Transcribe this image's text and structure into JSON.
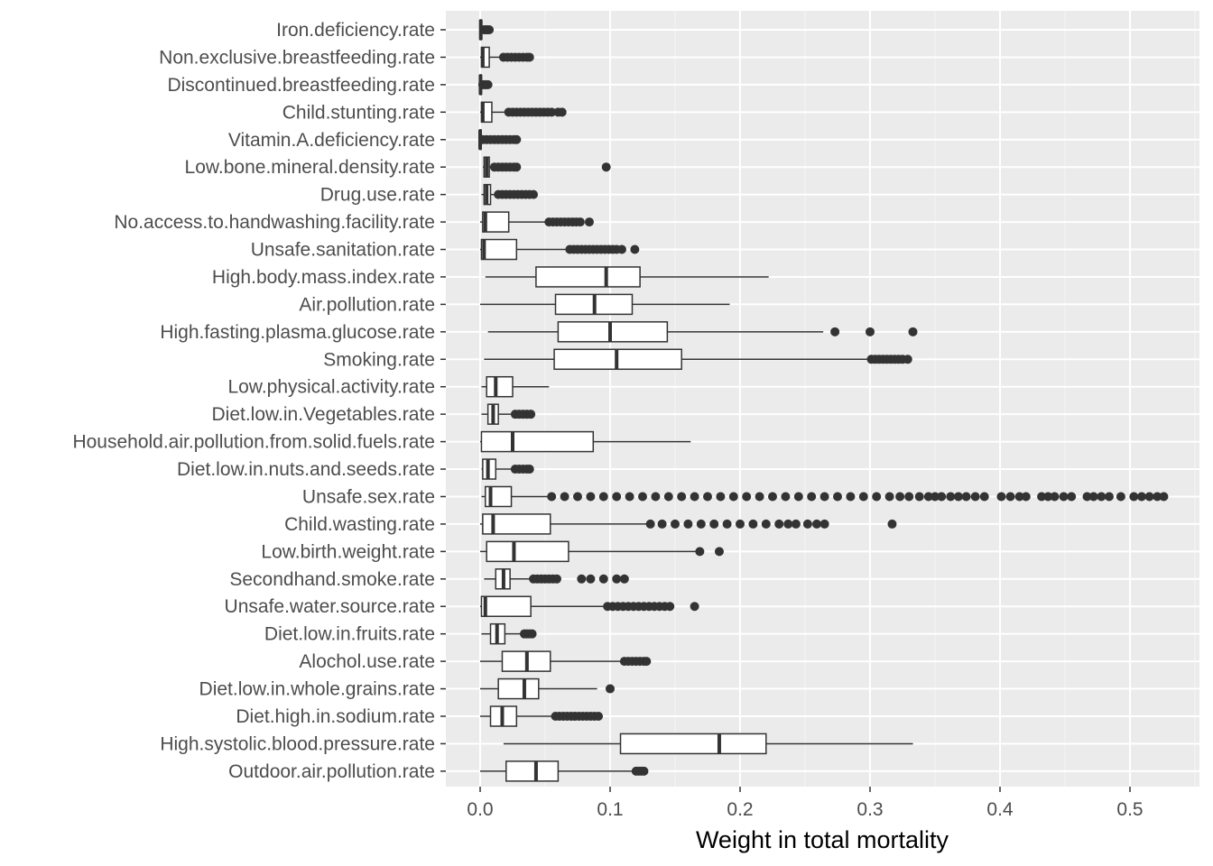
{
  "chart_data": {
    "type": "boxplot",
    "orientation": "horizontal",
    "xlabel": "Weight in total mortality",
    "ylabel": "",
    "xlim": [
      -0.025,
      0.55
    ],
    "xticks": [
      0.0,
      0.1,
      0.2,
      0.3,
      0.4,
      0.5
    ],
    "xtick_labels": [
      "0.0",
      "0.1",
      "0.2",
      "0.3",
      "0.4",
      "0.5"
    ],
    "grid": true,
    "colors": {
      "panel": "#ebebeb",
      "grid_major": "#ffffff",
      "grid_minor": "#f4f4f4",
      "box_fill": "#ffffff",
      "line": "#333333",
      "outlier": "#333333"
    },
    "categories": [
      {
        "label": "Iron.deficiency.rate",
        "min": 0.0,
        "q1": 0.0,
        "median": 0.0005,
        "q3": 0.001,
        "max": 0.002,
        "outliers": [
          0.003,
          0.004,
          0.005,
          0.006,
          0.007
        ]
      },
      {
        "label": "Non.exclusive.breastfeeding.rate",
        "min": 0.0,
        "q1": 0.001,
        "median": 0.002,
        "q3": 0.007,
        "max": 0.016,
        "outliers": [
          0.018,
          0.021,
          0.024,
          0.027,
          0.03,
          0.033,
          0.036,
          0.038
        ]
      },
      {
        "label": "Discontinued.breastfeeding.rate",
        "min": 0.0,
        "q1": 0.0,
        "median": 0.0003,
        "q3": 0.0008,
        "max": 0.0015,
        "outliers": [
          0.002,
          0.003,
          0.004,
          0.005,
          0.006
        ]
      },
      {
        "label": "Child.stunting.rate",
        "min": 0.0,
        "q1": 0.001,
        "median": 0.002,
        "q3": 0.009,
        "max": 0.02,
        "outliers": [
          0.022,
          0.025,
          0.028,
          0.031,
          0.034,
          0.037,
          0.04,
          0.043,
          0.046,
          0.049,
          0.052,
          0.055,
          0.06,
          0.063
        ]
      },
      {
        "label": "Vitamin.A.deficiency.rate",
        "min": 0.0,
        "q1": 0.0,
        "median": 0.0,
        "q3": 0.0005,
        "max": 0.001,
        "outliers": [
          0.002,
          0.005,
          0.008,
          0.011,
          0.014,
          0.017,
          0.02,
          0.023,
          0.026,
          0.028
        ]
      },
      {
        "label": "Low.bone.mineral.density.rate",
        "min": 0.002,
        "q1": 0.003,
        "median": 0.005,
        "q3": 0.007,
        "max": 0.01,
        "outliers": [
          0.011,
          0.014,
          0.017,
          0.02,
          0.023,
          0.026,
          0.028,
          0.097
        ]
      },
      {
        "label": "Drug.use.rate",
        "min": 0.001,
        "q1": 0.003,
        "median": 0.005,
        "q3": 0.008,
        "max": 0.012,
        "outliers": [
          0.014,
          0.017,
          0.02,
          0.023,
          0.026,
          0.029,
          0.032,
          0.035,
          0.038,
          0.041
        ]
      },
      {
        "label": "No.access.to.handwashing.facility.rate",
        "min": 0.0,
        "q1": 0.002,
        "median": 0.004,
        "q3": 0.022,
        "max": 0.051,
        "outliers": [
          0.053,
          0.056,
          0.059,
          0.062,
          0.065,
          0.068,
          0.071,
          0.074,
          0.077,
          0.084
        ]
      },
      {
        "label": "Unsafe.sanitation.rate",
        "min": 0.0,
        "q1": 0.001,
        "median": 0.003,
        "q3": 0.028,
        "max": 0.067,
        "outliers": [
          0.069,
          0.072,
          0.075,
          0.078,
          0.081,
          0.084,
          0.087,
          0.09,
          0.093,
          0.096,
          0.099,
          0.102,
          0.105,
          0.109,
          0.119
        ]
      },
      {
        "label": "High.body.mass.index.rate",
        "min": 0.004,
        "q1": 0.043,
        "median": 0.097,
        "q3": 0.123,
        "max": 0.222,
        "outliers": []
      },
      {
        "label": "Air.pollution.rate",
        "min": 0.0,
        "q1": 0.058,
        "median": 0.088,
        "q3": 0.117,
        "max": 0.192,
        "outliers": []
      },
      {
        "label": "High.fasting.plasma.glucose.rate",
        "min": 0.006,
        "q1": 0.06,
        "median": 0.1,
        "q3": 0.144,
        "max": 0.264,
        "outliers": [
          0.273,
          0.3,
          0.333
        ]
      },
      {
        "label": "Smoking.rate",
        "min": 0.003,
        "q1": 0.057,
        "median": 0.105,
        "q3": 0.155,
        "max": 0.3,
        "outliers": [
          0.301,
          0.304,
          0.307,
          0.31,
          0.313,
          0.316,
          0.319,
          0.322,
          0.325,
          0.329
        ]
      },
      {
        "label": "Low.physical.activity.rate",
        "min": 0.001,
        "q1": 0.005,
        "median": 0.012,
        "q3": 0.025,
        "max": 0.053,
        "outliers": []
      },
      {
        "label": "Diet.low.in.Vegetables.rate",
        "min": 0.001,
        "q1": 0.006,
        "median": 0.01,
        "q3": 0.014,
        "max": 0.025,
        "outliers": [
          0.027,
          0.03,
          0.033,
          0.036,
          0.039
        ]
      },
      {
        "label": "Household.air.pollution.from.solid.fuels.rate",
        "min": 0.0,
        "q1": 0.001,
        "median": 0.025,
        "q3": 0.087,
        "max": 0.162,
        "outliers": []
      },
      {
        "label": "Diet.low.in.nuts.and.seeds.rate",
        "min": 0.001,
        "q1": 0.002,
        "median": 0.006,
        "q3": 0.012,
        "max": 0.025,
        "outliers": [
          0.027,
          0.03,
          0.033,
          0.036,
          0.038
        ]
      },
      {
        "label": "Unsafe.sex.rate",
        "min": 0.001,
        "q1": 0.004,
        "median": 0.008,
        "q3": 0.024,
        "max": 0.052,
        "outliers": [
          0.055,
          0.065,
          0.075,
          0.085,
          0.095,
          0.105,
          0.115,
          0.125,
          0.135,
          0.145,
          0.155,
          0.165,
          0.175,
          0.185,
          0.195,
          0.205,
          0.215,
          0.225,
          0.235,
          0.245,
          0.255,
          0.265,
          0.275,
          0.285,
          0.295,
          0.305,
          0.315,
          0.323,
          0.33,
          0.338,
          0.345,
          0.35,
          0.355,
          0.362,
          0.368,
          0.374,
          0.381,
          0.388,
          0.401,
          0.408,
          0.415,
          0.42,
          0.432,
          0.437,
          0.442,
          0.449,
          0.455,
          0.467,
          0.472,
          0.478,
          0.484,
          0.493,
          0.503,
          0.509,
          0.515,
          0.521,
          0.526
        ]
      },
      {
        "label": "Child.wasting.rate",
        "min": 0.0,
        "q1": 0.002,
        "median": 0.01,
        "q3": 0.054,
        "max": 0.129,
        "outliers": [
          0.131,
          0.14,
          0.15,
          0.16,
          0.17,
          0.18,
          0.19,
          0.2,
          0.21,
          0.22,
          0.23,
          0.237,
          0.243,
          0.252,
          0.259,
          0.265,
          0.317
        ]
      },
      {
        "label": "Low.birth.weight.rate",
        "min": 0.0,
        "q1": 0.005,
        "median": 0.026,
        "q3": 0.068,
        "max": 0.167,
        "outliers": [
          0.169,
          0.184
        ]
      },
      {
        "label": "Secondhand.smoke.rate",
        "min": 0.003,
        "q1": 0.012,
        "median": 0.018,
        "q3": 0.023,
        "max": 0.039,
        "outliers": [
          0.041,
          0.044,
          0.047,
          0.05,
          0.053,
          0.056,
          0.059,
          0.078,
          0.085,
          0.095,
          0.105,
          0.111
        ]
      },
      {
        "label": "Unsafe.water.source.rate",
        "min": 0.0,
        "q1": 0.001,
        "median": 0.004,
        "q3": 0.039,
        "max": 0.096,
        "outliers": [
          0.098,
          0.102,
          0.106,
          0.11,
          0.114,
          0.118,
          0.122,
          0.126,
          0.13,
          0.134,
          0.138,
          0.142,
          0.146,
          0.165
        ]
      },
      {
        "label": "Diet.low.in.fruits.rate",
        "min": 0.001,
        "q1": 0.008,
        "median": 0.013,
        "q3": 0.019,
        "max": 0.032,
        "outliers": [
          0.034,
          0.036,
          0.038,
          0.04
        ]
      },
      {
        "label": "Alochol.use.rate",
        "min": 0.0,
        "q1": 0.017,
        "median": 0.036,
        "q3": 0.054,
        "max": 0.109,
        "outliers": [
          0.111,
          0.114,
          0.117,
          0.12,
          0.123,
          0.126,
          0.128
        ]
      },
      {
        "label": "Diet.low.in.whole.grains.rate",
        "min": 0.0,
        "q1": 0.014,
        "median": 0.034,
        "q3": 0.045,
        "max": 0.09,
        "outliers": [
          0.1
        ]
      },
      {
        "label": "Diet.high.in.sodium.rate",
        "min": 0.0,
        "q1": 0.008,
        "median": 0.017,
        "q3": 0.028,
        "max": 0.056,
        "outliers": [
          0.058,
          0.061,
          0.064,
          0.067,
          0.07,
          0.073,
          0.076,
          0.079,
          0.082,
          0.085,
          0.088,
          0.091
        ]
      },
      {
        "label": "High.systolic.blood.pressure.rate",
        "min": 0.018,
        "q1": 0.108,
        "median": 0.184,
        "q3": 0.22,
        "max": 0.333,
        "outliers": []
      },
      {
        "label": "Outdoor.air.pollution.rate",
        "min": 0.0,
        "q1": 0.02,
        "median": 0.043,
        "q3": 0.06,
        "max": 0.118,
        "outliers": [
          0.12,
          0.122,
          0.124,
          0.126
        ]
      }
    ]
  }
}
